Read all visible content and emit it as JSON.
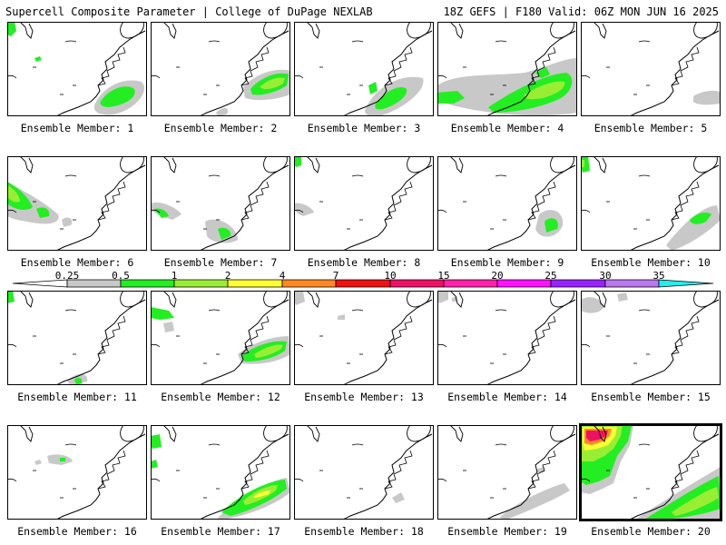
{
  "header": {
    "title": "Supercell Composite Parameter | College of DuPage NEXLAB",
    "run_info": "18Z GEFS | F180 Valid: 06Z MON JUN 16 2025"
  },
  "colorbar": {
    "ticks": [
      "0.25",
      "0.5",
      "1",
      "2",
      "4",
      "7",
      "10",
      "15",
      "20",
      "25",
      "30",
      "35"
    ],
    "colors": [
      "#c8c8c8",
      "#22ee22",
      "#99ee33",
      "#ffff33",
      "#ff8822",
      "#ee1111",
      "#ee1166",
      "#ff22aa",
      "#ff11ff",
      "#9922ff",
      "#bb77ee",
      "#22eeee"
    ]
  },
  "members": [
    {
      "label": "Ensemble Member: 1"
    },
    {
      "label": "Ensemble Member: 2"
    },
    {
      "label": "Ensemble Member: 3"
    },
    {
      "label": "Ensemble Member: 4"
    },
    {
      "label": "Ensemble Member: 5"
    },
    {
      "label": "Ensemble Member: 6"
    },
    {
      "label": "Ensemble Member: 7"
    },
    {
      "label": "Ensemble Member: 8"
    },
    {
      "label": "Ensemble Member: 9"
    },
    {
      "label": "Ensemble Member: 10"
    },
    {
      "label": "Ensemble Member: 11"
    },
    {
      "label": "Ensemble Member: 12"
    },
    {
      "label": "Ensemble Member: 13"
    },
    {
      "label": "Ensemble Member: 14"
    },
    {
      "label": "Ensemble Member: 15"
    },
    {
      "label": "Ensemble Member: 16"
    },
    {
      "label": "Ensemble Member: 17"
    },
    {
      "label": "Ensemble Member: 18"
    },
    {
      "label": "Ensemble Member: 19"
    },
    {
      "label": "Ensemble Member: 20",
      "highlighted": true
    }
  ]
}
